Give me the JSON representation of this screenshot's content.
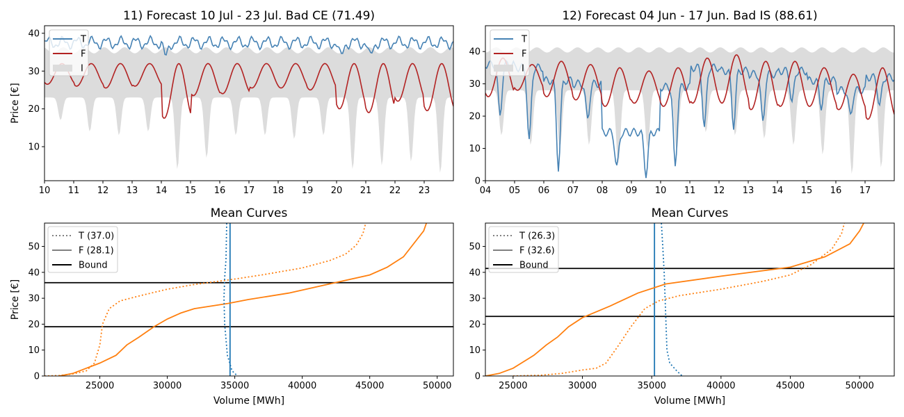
{
  "charts": [
    {
      "id": "p11",
      "type": "line",
      "title": "11) Forecast 10 Jul - 23 Jul. Bad CE (71.49)",
      "xlabel": "",
      "ylabel": "Price [€]",
      "xlim": [
        10,
        24
      ],
      "ylim": [
        1,
        42
      ],
      "xticks": [
        10,
        11,
        12,
        13,
        14,
        15,
        16,
        17,
        18,
        19,
        20,
        21,
        22,
        23
      ],
      "xtick_labels": [
        "10",
        "11",
        "12",
        "13",
        "14",
        "15",
        "16",
        "17",
        "18",
        "19",
        "20",
        "21",
        "22",
        "23"
      ],
      "yticks": [
        10,
        20,
        30,
        40
      ],
      "legend": {
        "position": "top-left",
        "entries": [
          "T",
          "F",
          "I"
        ]
      },
      "colors": {
        "T": "#4682b4",
        "F": "#b22222",
        "I": "#dcdcdc"
      },
      "series_spec": {
        "T": {
          "base": 37.5,
          "amp": 1.2,
          "dip_day": [
            14,
            20,
            21
          ],
          "dip_depth": 4,
          "spread": 0.6
        },
        "F": {
          "base": 29.0,
          "amp": 2.5,
          "low_day_values": [
            26.5,
            26,
            25.5,
            26,
            17.5,
            23.5,
            24,
            25.5,
            25.5,
            25,
            20,
            19,
            22,
            19.5
          ]
        },
        "I_upper": 35.5,
        "I_lower_base": 23,
        "I_lower_daily_min": [
          17,
          14,
          13,
          14,
          4,
          7,
          13,
          13,
          12,
          13,
          4,
          5,
          6,
          3
        ]
      }
    },
    {
      "id": "p12",
      "type": "line",
      "title": "12) Forecast 04 Jun - 17 Jun. Bad IS (88.61)",
      "xlabel": "",
      "ylabel": "",
      "xlim": [
        4,
        18
      ],
      "ylim": [
        0,
        48
      ],
      "xticks": [
        4,
        5,
        6,
        7,
        8,
        9,
        10,
        11,
        12,
        13,
        14,
        15,
        16,
        17
      ],
      "xtick_labels": [
        "04",
        "05",
        "06",
        "07",
        "08",
        "09",
        "10",
        "11",
        "12",
        "13",
        "14",
        "15",
        "16",
        "17"
      ],
      "yticks": [
        0,
        10,
        20,
        30,
        40
      ],
      "legend": {
        "position": "top-left",
        "entries": [
          "T",
          "F",
          "I"
        ]
      },
      "colors": {
        "T": "#4682b4",
        "F": "#b22222",
        "I": "#dcdcdc"
      },
      "series_spec": {
        "T_day_high": [
          36,
          35,
          31,
          30,
          15,
          15,
          29,
          35,
          34,
          33,
          34,
          31,
          28,
          32
        ],
        "T_day_low": [
          20,
          12,
          4,
          19,
          4,
          2,
          4,
          16,
          17,
          18,
          24,
          23,
          20,
          23
        ],
        "F_day_high": [
          38,
          36,
          37,
          36,
          35,
          34,
          35,
          38,
          39,
          37,
          37,
          35,
          33,
          35
        ],
        "F_day_low": [
          26,
          28,
          26,
          25,
          23,
          24,
          23,
          24,
          24,
          22,
          23,
          23,
          22,
          19
        ],
        "I_upper": 40.5,
        "I_lower_base": 28,
        "I_lower_daily_min": [
          14,
          11,
          10,
          11,
          5,
          10,
          9,
          15,
          14,
          13,
          11,
          8,
          2,
          4
        ]
      }
    },
    {
      "id": "p21",
      "type": "line",
      "title": "Mean Curves",
      "xlabel": "Volume [MWh]",
      "ylabel": "Price [€]",
      "xlim": [
        20900,
        51200
      ],
      "ylim": [
        0,
        59
      ],
      "xticks": [
        25000,
        30000,
        35000,
        40000,
        45000,
        50000
      ],
      "xtick_labels": [
        "25000",
        "30000",
        "35000",
        "40000",
        "45000",
        "50000"
      ],
      "yticks": [
        0,
        10,
        20,
        30,
        40,
        50
      ],
      "legend": {
        "position": "top-left",
        "entries": [
          "T (37.0)",
          "F (28.1)",
          "Bound"
        ]
      },
      "bounds": [
        19,
        36
      ],
      "vline": 34650,
      "colors": {
        "curve": "#ff7f0e",
        "demand": "#1f77b4",
        "bound": "#000000",
        "legend_line": "#808080"
      },
      "series": [
        {
          "name": "T (37.0)",
          "style": "dotted",
          "points": [
            [
              20900,
              0
            ],
            [
              22000,
              0.2
            ],
            [
              23000,
              0.8
            ],
            [
              24000,
              2
            ],
            [
              24600,
              5
            ],
            [
              25000,
              12
            ],
            [
              25200,
              20
            ],
            [
              25700,
              26
            ],
            [
              26500,
              29
            ],
            [
              28000,
              31
            ],
            [
              30000,
              33.5
            ],
            [
              32000,
              35.3
            ],
            [
              35000,
              37.4
            ],
            [
              37000,
              39
            ],
            [
              40000,
              41.7
            ],
            [
              42000,
              44.5
            ],
            [
              43200,
              47
            ],
            [
              44000,
              50.5
            ],
            [
              44500,
              55
            ],
            [
              44700,
              59
            ]
          ]
        },
        {
          "name": "F (28.1)",
          "style": "solid",
          "points": [
            [
              22000,
              0
            ],
            [
              23000,
              1
            ],
            [
              24000,
              3
            ],
            [
              25000,
              5
            ],
            [
              26200,
              8
            ],
            [
              27000,
              12
            ],
            [
              27900,
              15
            ],
            [
              29000,
              19
            ],
            [
              30000,
              22
            ],
            [
              31000,
              24.3
            ],
            [
              32000,
              26
            ],
            [
              34500,
              28
            ],
            [
              36000,
              29.5
            ],
            [
              39000,
              32
            ],
            [
              42000,
              35.5
            ],
            [
              45000,
              39
            ],
            [
              46300,
              42
            ],
            [
              47500,
              46
            ],
            [
              49000,
              56
            ],
            [
              49200,
              59
            ]
          ]
        },
        {
          "name": "demand",
          "style": "dotted-blue",
          "points": [
            [
              34400,
              59
            ],
            [
              34350,
              45
            ],
            [
              34250,
              38
            ],
            [
              34200,
              30
            ],
            [
              34250,
              20
            ],
            [
              34450,
              8
            ],
            [
              34800,
              2
            ],
            [
              35200,
              0
            ]
          ]
        }
      ]
    },
    {
      "id": "p22",
      "type": "line",
      "title": "Mean Curves",
      "xlabel": "Volume [MWh]",
      "ylabel": "",
      "xlim": [
        23000,
        52500
      ],
      "ylim": [
        0,
        59
      ],
      "xticks": [
        25000,
        30000,
        35000,
        40000,
        45000,
        50000
      ],
      "xtick_labels": [
        "25000",
        "30000",
        "35000",
        "40000",
        "45000",
        "50000"
      ],
      "yticks": [
        0,
        10,
        20,
        30,
        40,
        50
      ],
      "legend": {
        "position": "top-left",
        "entries": [
          "T (26.3)",
          "F (32.6)",
          "Bound"
        ]
      },
      "bounds": [
        23,
        41.5
      ],
      "vline": 35200,
      "colors": {
        "curve": "#ff7f0e",
        "demand": "#1f77b4",
        "bound": "#000000",
        "legend_line": "#808080"
      },
      "series": [
        {
          "name": "T (26.3)",
          "style": "dotted",
          "points": [
            [
              25000,
              0
            ],
            [
              27000,
              0.3
            ],
            [
              28500,
              1
            ],
            [
              30000,
              2.3
            ],
            [
              31000,
              3
            ],
            [
              31700,
              5
            ],
            [
              32500,
              11
            ],
            [
              33500,
              19
            ],
            [
              34500,
              26
            ],
            [
              35500,
              29
            ],
            [
              37000,
              31
            ],
            [
              40000,
              33.5
            ],
            [
              43000,
              36.5
            ],
            [
              45000,
              39
            ],
            [
              46500,
              43
            ],
            [
              48000,
              49
            ],
            [
              48700,
              55
            ],
            [
              48900,
              59
            ]
          ]
        },
        {
          "name": "F (32.6)",
          "style": "solid",
          "points": [
            [
              23000,
              0
            ],
            [
              24000,
              1
            ],
            [
              25000,
              3
            ],
            [
              25600,
              5
            ],
            [
              26500,
              8
            ],
            [
              27400,
              12
            ],
            [
              28200,
              15
            ],
            [
              29000,
              19
            ],
            [
              30000,
              22.5
            ],
            [
              32000,
              27
            ],
            [
              34000,
              32
            ],
            [
              36000,
              35.5
            ],
            [
              40000,
              38.5
            ],
            [
              45000,
              42
            ],
            [
              47500,
              46
            ],
            [
              49300,
              51
            ],
            [
              50000,
              56
            ],
            [
              50300,
              59
            ]
          ]
        },
        {
          "name": "demand",
          "style": "dotted-blue",
          "points": [
            [
              35700,
              59
            ],
            [
              35800,
              50
            ],
            [
              35900,
              40
            ],
            [
              36000,
              25
            ],
            [
              36100,
              10
            ],
            [
              36300,
              5
            ],
            [
              36800,
              2
            ],
            [
              37200,
              0
            ]
          ]
        }
      ]
    }
  ]
}
